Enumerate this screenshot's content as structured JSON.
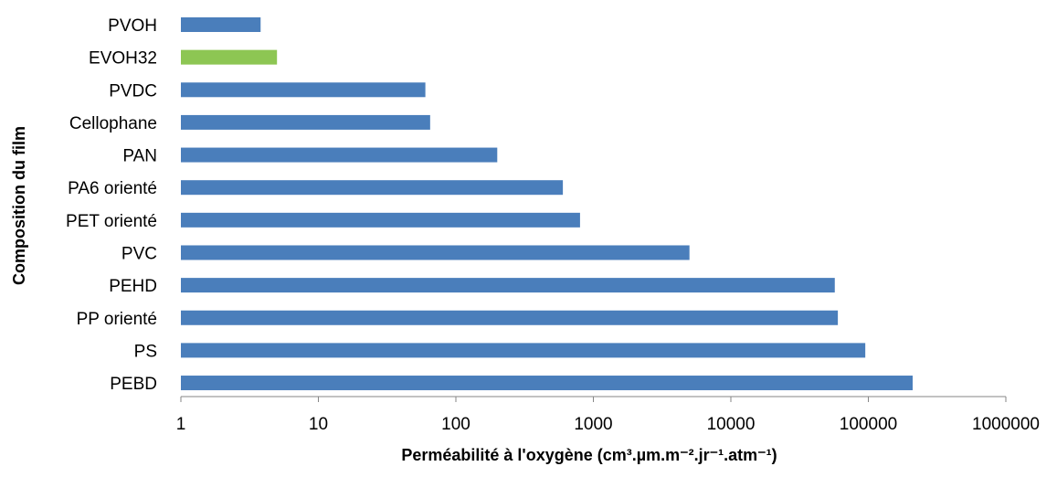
{
  "chart_data": {
    "type": "bar",
    "orientation": "horizontal",
    "xscale": "log",
    "xlim": [
      1,
      1000000
    ],
    "xticks": [
      "1",
      "10",
      "100",
      "1000",
      "10000",
      "100000",
      "1000000"
    ],
    "xlabel": "Perméabilité à l'oxygène (cm³.µm.m⁻².jr⁻¹.atm⁻¹)",
    "ylabel": "Composition du film",
    "grid": false,
    "categories": [
      "PVOH",
      "EVOH32",
      "PVDC",
      "Cellophane",
      "PAN",
      "PA6 orienté",
      "PET orienté",
      "PVC",
      "PEHD",
      "PP orienté",
      "PS",
      "PEBD"
    ],
    "values": [
      3.8,
      5,
      60,
      65,
      200,
      600,
      800,
      5000,
      57000,
      60000,
      95000,
      210000
    ],
    "colors": [
      "#4a7ebb",
      "#8dc653",
      "#4a7ebb",
      "#4a7ebb",
      "#4a7ebb",
      "#4a7ebb",
      "#4a7ebb",
      "#4a7ebb",
      "#4a7ebb",
      "#4a7ebb",
      "#4a7ebb",
      "#4a7ebb"
    ]
  }
}
